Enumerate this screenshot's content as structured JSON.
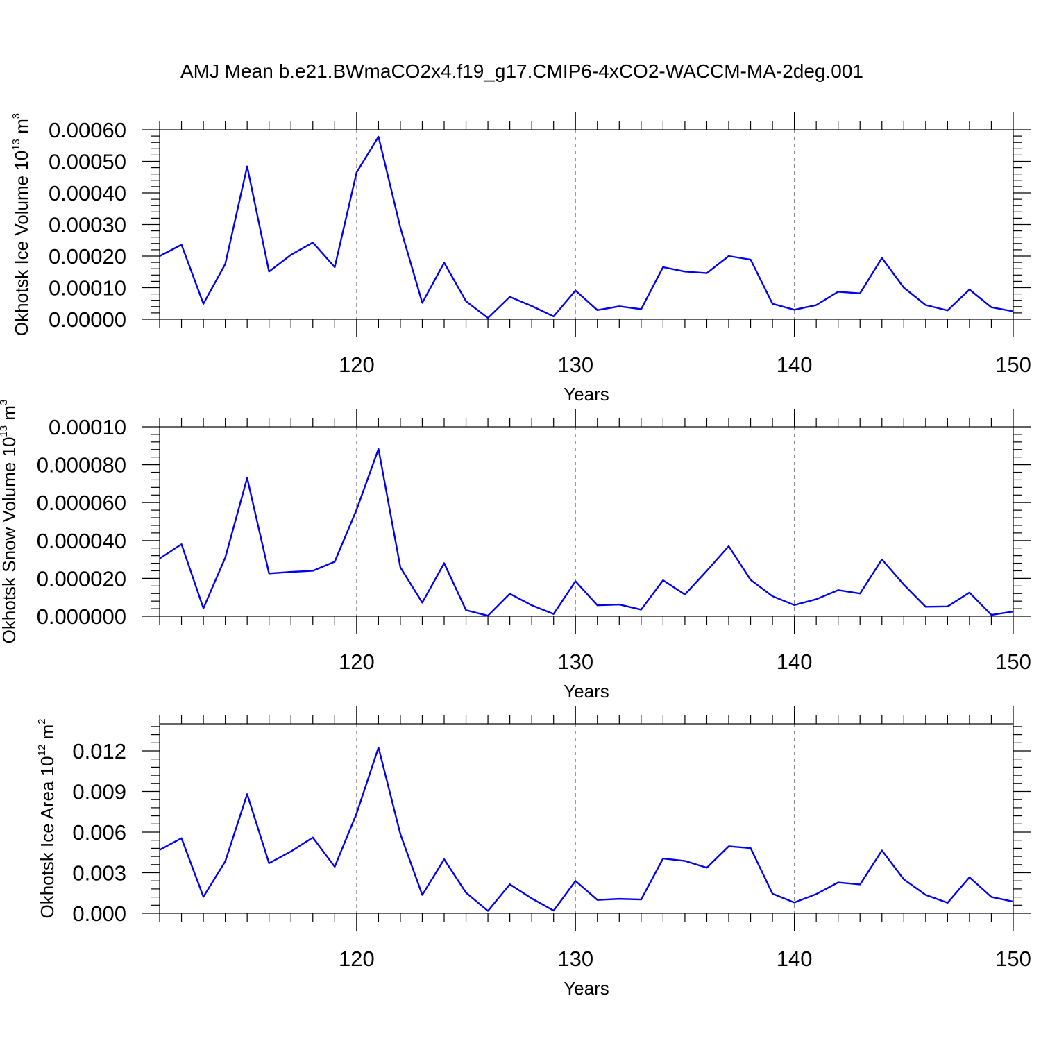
{
  "title": "AMJ Mean b.e21.BWmaCO2x4.f19_g17.CMIP6-4xCO2-WACCM-MA-2deg.001",
  "chart_data": [
    {
      "type": "line",
      "ylabel": "Okhotsk Ice Volume 10",
      "ylabel_exp": "13",
      "ylabel_unit": " m",
      "ylabel_unit_exp": "3",
      "xlabel": "Years",
      "xlim": [
        111,
        150
      ],
      "ylim": [
        0,
        0.0006
      ],
      "xticks": [
        120,
        130,
        140,
        150
      ],
      "xtick_labels": [
        "120",
        "130",
        "140",
        "150"
      ],
      "yticks": [
        0,
        0.0001,
        0.0002,
        0.0003,
        0.0004,
        0.0005,
        0.0006
      ],
      "ytick_labels": [
        "0.00000",
        "0.00010",
        "0.00020",
        "0.00030",
        "0.00040",
        "0.00050",
        "0.00060"
      ],
      "grid": "dashed vertical at major x ticks",
      "x": [
        111,
        112,
        113,
        114,
        115,
        116,
        117,
        118,
        119,
        120,
        121,
        122,
        123,
        124,
        125,
        126,
        127,
        128,
        129,
        130,
        131,
        132,
        133,
        134,
        135,
        136,
        137,
        138,
        139,
        140,
        141,
        142,
        143,
        144,
        145,
        146,
        147,
        148,
        149,
        150
      ],
      "values": [
        0.0002,
        0.000236,
        4.9e-05,
        0.000175,
        0.000484,
        0.000151,
        0.000204,
        0.000243,
        0.000165,
        0.000465,
        0.000578,
        0.00029,
        5.2e-05,
        0.000179,
        5.7e-05,
        4e-06,
        7.1e-05,
        4.2e-05,
        9e-06,
        9.1e-05,
        2.9e-05,
        4.1e-05,
        3.2e-05,
        0.000165,
        0.000151,
        0.000146,
        0.0002,
        0.000189,
        4.9e-05,
        3e-05,
        4.5e-05,
        8.7e-05,
        8.2e-05,
        0.000194,
        0.0001,
        4.5e-05,
        2.8e-05,
        9.4e-05,
        3.8e-05,
        2.5e-05
      ]
    },
    {
      "type": "line",
      "ylabel": "Okhotsk Snow Volume 10",
      "ylabel_exp": "13",
      "ylabel_unit": " m",
      "ylabel_unit_exp": "3",
      "xlabel": "Years",
      "xlim": [
        111,
        150
      ],
      "ylim": [
        0,
        0.0001
      ],
      "xticks": [
        120,
        130,
        140,
        150
      ],
      "xtick_labels": [
        "120",
        "130",
        "140",
        "150"
      ],
      "yticks": [
        0,
        2e-05,
        4e-05,
        6e-05,
        8e-05,
        0.0001
      ],
      "ytick_labels": [
        "0.000000",
        "0.000020",
        "0.000040",
        "0.000060",
        "0.000080",
        "0.00010"
      ],
      "grid": "dashed vertical at major x ticks",
      "x": [
        111,
        112,
        113,
        114,
        115,
        116,
        117,
        118,
        119,
        120,
        121,
        122,
        123,
        124,
        125,
        126,
        127,
        128,
        129,
        130,
        131,
        132,
        133,
        134,
        135,
        136,
        137,
        138,
        139,
        140,
        141,
        142,
        143,
        144,
        145,
        146,
        147,
        148,
        149,
        150
      ],
      "values": [
        3.05e-05,
        3.8e-05,
        4.2e-06,
        3.1e-05,
        7.3e-05,
        2.26e-05,
        2.34e-05,
        2.4e-05,
        2.88e-05,
        5.63e-05,
        8.83e-05,
        2.58e-05,
        7.2e-06,
        2.8e-05,
        3.2e-06,
        3e-07,
        1.19e-05,
        5.8e-06,
        1.2e-06,
        1.85e-05,
        5.8e-06,
        6.2e-06,
        3.5e-06,
        1.9e-05,
        1.15e-05,
        2.4e-05,
        3.7e-05,
        1.92e-05,
        1.06e-05,
        5.9e-06,
        9e-06,
        1.38e-05,
        1.2e-05,
        3e-05,
        1.67e-05,
        5e-06,
        5.2e-06,
        1.25e-05,
        7e-07,
        2.5e-06
      ]
    },
    {
      "type": "line",
      "ylabel": "Okhotsk Ice Area 10",
      "ylabel_exp": "12",
      "ylabel_unit": " m",
      "ylabel_unit_exp": "2",
      "xlabel": "Years",
      "xlim": [
        111,
        150
      ],
      "ylim": [
        0,
        0.014
      ],
      "xticks": [
        120,
        130,
        140,
        150
      ],
      "xtick_labels": [
        "120",
        "130",
        "140",
        "150"
      ],
      "yticks": [
        0,
        0.003,
        0.006,
        0.009,
        0.012
      ],
      "ytick_labels": [
        "0.000",
        "0.003",
        "0.006",
        "0.009",
        "0.012"
      ],
      "grid": "dashed vertical at major x ticks",
      "x": [
        111,
        112,
        113,
        114,
        115,
        116,
        117,
        118,
        119,
        120,
        121,
        122,
        123,
        124,
        125,
        126,
        127,
        128,
        129,
        130,
        131,
        132,
        133,
        134,
        135,
        136,
        137,
        138,
        139,
        140,
        141,
        142,
        143,
        144,
        145,
        146,
        147,
        148,
        149,
        150
      ],
      "values": [
        0.00468,
        0.00555,
        0.00122,
        0.00384,
        0.0088,
        0.0037,
        0.00457,
        0.0056,
        0.00344,
        0.00738,
        0.01225,
        0.00585,
        0.00136,
        0.00399,
        0.00152,
        0.00018,
        0.00214,
        0.0011,
        0.0002,
        0.00239,
        0.00099,
        0.00107,
        0.00102,
        0.00405,
        0.00387,
        0.00337,
        0.00495,
        0.00482,
        0.00145,
        0.0008,
        0.00142,
        0.00228,
        0.00213,
        0.00464,
        0.00251,
        0.00136,
        0.00078,
        0.00266,
        0.00121,
        0.00087
      ]
    }
  ]
}
